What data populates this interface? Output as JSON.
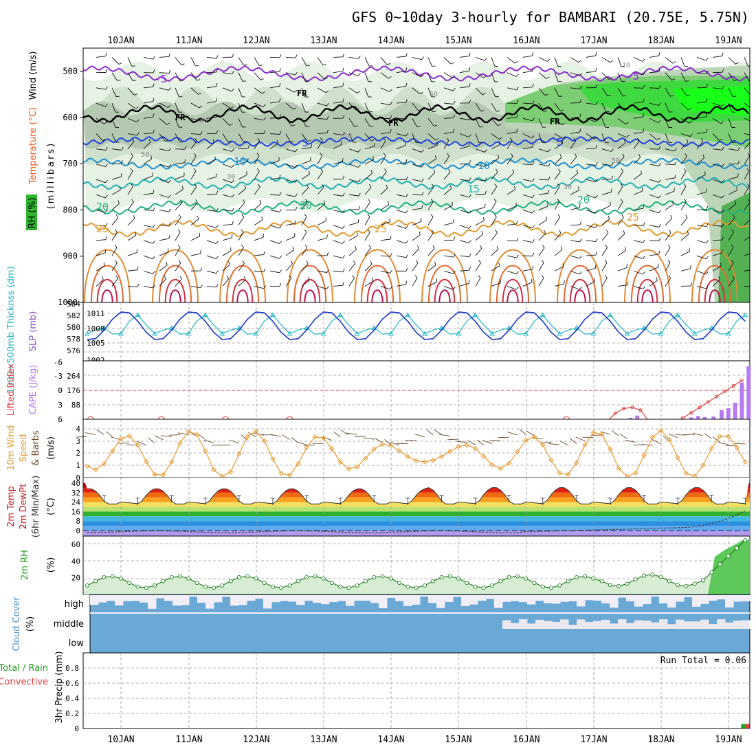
{
  "title": "GFS 0~10day 3-hourly for BAMBARI (20.75E, 5.75N)",
  "date_labels": [
    "10JAN",
    "11JAN",
    "12JAN",
    "13JAN",
    "14JAN",
    "15JAN",
    "16JAN",
    "17JAN",
    "18JAN",
    "19JAN"
  ],
  "panels": {
    "upper_air": {
      "ylabel_rh": "RH (%)",
      "ylabel_temp": "Temperature (°C)",
      "ylabel_wind": "Wind (m/s)",
      "ylabel_units": "(millibars)",
      "y_ticks": [
        "500",
        "600",
        "700",
        "800",
        "900",
        "1000"
      ],
      "fr_label": "FR",
      "temp_labels": [
        "-5",
        "5",
        "10",
        "15",
        "20",
        "25"
      ],
      "rh_labels": [
        "10",
        "30",
        "50"
      ]
    },
    "pressure": {
      "ylabel_thick": "1000~500mb Thicknss (dm)",
      "ylabel_slp": "SLP (mb)",
      "left_ticks": [
        "584",
        "582",
        "580",
        "578",
        "576"
      ],
      "right_ticks": [
        "1011",
        "1008",
        "1005",
        "1002"
      ]
    },
    "instability": {
      "ylabel_li": "Lifted Index",
      "ylabel_cape": "CAPE (J/kg)",
      "li_ticks": [
        "-6",
        "-3",
        "0",
        "3",
        "6"
      ],
      "cape_ticks": [
        "264",
        "176",
        "88"
      ]
    },
    "wind10m": {
      "ylabel_a": "10m Wind",
      "ylabel_b": "Speed",
      "ylabel_c": "& Barbs",
      "ylabel_units": "(m/s)",
      "y_ticks": [
        "4",
        "3",
        "2",
        "1",
        "0"
      ]
    },
    "temp2m": {
      "ylabel_a": "2m Temp",
      "ylabel_b": "2m DewPt",
      "ylabel_c": "(6hr Min/Max)",
      "ylabel_units": "(°C)",
      "y_ticks": [
        "40",
        "32",
        "24",
        "16",
        "8",
        "0"
      ]
    },
    "rh2m": {
      "ylabel": "2m RH",
      "ylabel_units": "(%)",
      "y_ticks": [
        "60",
        "40",
        "20"
      ]
    },
    "cloud": {
      "ylabel": "Cloud Cover",
      "ylabel_units": "(%)",
      "levels": [
        "high",
        "middle",
        "low"
      ]
    },
    "precip": {
      "ylabel_total": "Total / Rain",
      "ylabel_conv": "Convective",
      "ylabel_main": "3hr Precip (mm)",
      "y_ticks": [
        "0.8",
        "0.6",
        "0.4",
        "0.2",
        "0"
      ],
      "run_total": "Run Total = 0.06"
    }
  },
  "colors": {
    "thickness": "#22b5c5",
    "slp": "#1a36c8",
    "lifted_index": "#e04040",
    "cape": "#b57cf0",
    "wind_speed": "#e89a30",
    "rh": "#20a020",
    "cloud": "#6aa8d6",
    "freezing": "#000000"
  },
  "chart_data": [
    {
      "type": "line",
      "name": "1000-500mb thickness / SLP",
      "x": [
        "10JAN",
        "11JAN",
        "12JAN",
        "13JAN",
        "14JAN",
        "15JAN",
        "16JAN",
        "17JAN",
        "18JAN",
        "19JAN"
      ],
      "series": [
        {
          "name": "Thicknss (dm)",
          "values": [
            580.6,
            579.2,
            579.9,
            579.6,
            579.6,
            579.3,
            578.9,
            580.8,
            581.4,
            580.4
          ]
        },
        {
          "name": "SLP (mb)",
          "values": [
            1010.0,
            1009.6,
            1010.4,
            1010.3,
            1008.0,
            1009.8,
            1010.1,
            1009.2,
            1009.3,
            1009.8
          ]
        }
      ],
      "ylim_left": [
        575,
        584
      ],
      "ylim_right": [
        1002,
        1012
      ]
    },
    {
      "type": "bar",
      "name": "CAPE / Lifted Index",
      "categories": [
        "17.6JAN",
        "17.7JAN",
        "18.5JAN",
        "18.6JAN",
        "18.7JAN",
        "18.8JAN",
        "18.9JAN",
        "19.0JAN",
        "19.1JAN",
        "19.2JAN",
        "19.3JAN"
      ],
      "series": [
        {
          "name": "CAPE (J/kg)",
          "values": [
            8,
            20,
            10,
            18,
            12,
            15,
            50,
            60,
            90,
            200,
            290
          ]
        },
        {
          "name": "Lifted Index",
          "values": [
            5,
            4.5,
            3.5,
            2.5,
            1.5,
            1.0,
            0.5,
            0.3,
            0.0,
            -0.5,
            -1.5
          ]
        }
      ],
      "ylim_cape": [
        0,
        300
      ],
      "ylim_li": [
        6,
        -6
      ]
    },
    {
      "type": "line",
      "name": "10m wind speed",
      "x": [
        "10JAN",
        "11JAN",
        "12JAN",
        "13JAN",
        "14JAN",
        "15JAN",
        "16JAN",
        "17JAN",
        "18JAN",
        "19JAN"
      ],
      "series": [
        {
          "name": "Speed (m/s)",
          "values": [
            1.3,
            1.0,
            2.4,
            0.6,
            2.2,
            1.1,
            2.6,
            1.4,
            0.9,
            2.8
          ]
        }
      ],
      "ylim": [
        0,
        4.5
      ]
    },
    {
      "type": "area",
      "name": "2m temperature / dewpoint",
      "x": [
        "10JAN",
        "11JAN",
        "12JAN",
        "13JAN",
        "14JAN",
        "15JAN",
        "16JAN",
        "17JAN",
        "18JAN",
        "19JAN"
      ],
      "series": [
        {
          "name": "2m Temp max",
          "values": [
            36,
            36,
            36,
            36,
            36,
            37,
            37,
            37,
            37,
            33
          ]
        },
        {
          "name": "2m Temp min",
          "values": [
            22,
            22,
            22,
            22,
            22,
            22,
            22,
            22,
            22,
            24
          ]
        },
        {
          "name": "2m DewPt",
          "values": [
            -1,
            -1,
            -1,
            0,
            -1,
            -2,
            0,
            2,
            3,
            17
          ]
        }
      ],
      "ylim": [
        -5,
        42
      ]
    },
    {
      "type": "line",
      "name": "2m RH",
      "x": [
        "10JAN",
        "11JAN",
        "12JAN",
        "13JAN",
        "14JAN",
        "15JAN",
        "16JAN",
        "17JAN",
        "18JAN",
        "19JAN"
      ],
      "series": [
        {
          "name": "2m RH (%)",
          "values": [
            12,
            10,
            14,
            12,
            15,
            12,
            12,
            17,
            18,
            64
          ]
        }
      ],
      "ylim": [
        0,
        70
      ]
    },
    {
      "type": "bar",
      "name": "3hr Precip",
      "categories": [
        "19.2JAN"
      ],
      "series": [
        {
          "name": "3hr Precip (mm)",
          "values": [
            0.06
          ]
        }
      ],
      "ylim": [
        0,
        1.0
      ]
    }
  ]
}
